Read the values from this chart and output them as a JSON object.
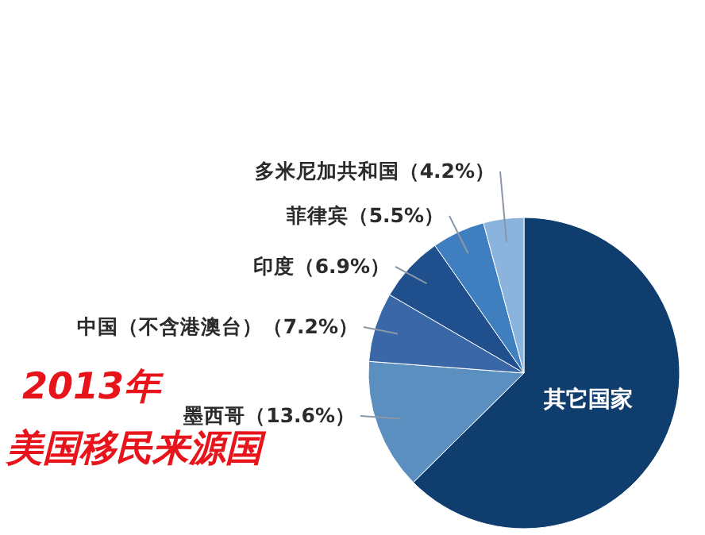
{
  "chart_data": {
    "type": "pie",
    "title": "2013年",
    "subtitle": "美国移民来源国",
    "categories": [
      "其它国家",
      "墨西哥",
      "中国（不含港澳台）",
      "印度",
      "菲律宾",
      "多米尼加共和国"
    ],
    "values": [
      62.6,
      13.6,
      7.2,
      6.9,
      5.5,
      4.2
    ],
    "colors": [
      "#0f3d6e",
      "#5b8fc0",
      "#3a67a8",
      "#1f4f8c",
      "#3f7fc0",
      "#8ab4dd"
    ],
    "value_labels": [
      null,
      "（13.6%）",
      "（7.2%）",
      "（6.9%）",
      "（5.5%）",
      "（4.2%）"
    ]
  }
}
